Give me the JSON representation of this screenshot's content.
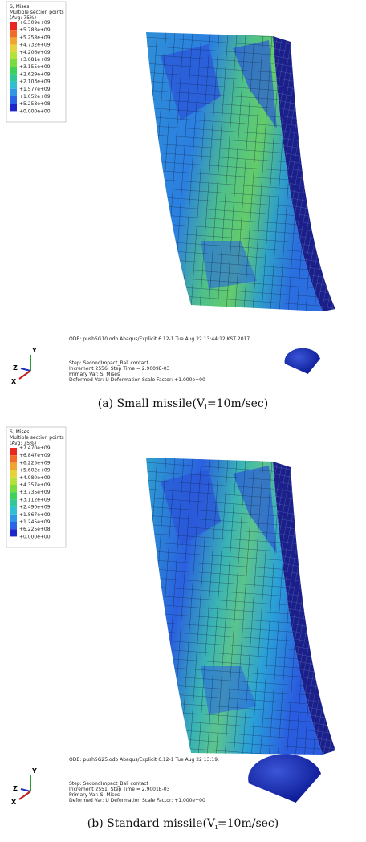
{
  "panels": [
    {
      "legend": {
        "title": "S, Mises",
        "subtitle": "Multiple section points",
        "avg": "(Avg: 75%)",
        "labels": [
          "+6.309e+09",
          "+5.783e+09",
          "+5.258e+09",
          "+4.732e+09",
          "+4.206e+09",
          "+3.681e+09",
          "+3.155e+09",
          "+2.629e+09",
          "+2.103e+09",
          "+1.577e+09",
          "+1.052e+09",
          "+5.258e+08",
          "+0.000e+00"
        ],
        "colors": [
          "#e8281e",
          "#f06a28",
          "#f0a532",
          "#e6d23c",
          "#b4e13c",
          "#78dc3c",
          "#3cd25a",
          "#32c896",
          "#32bed2",
          "#3296e6",
          "#2a64e6",
          "#1e28c8"
        ]
      },
      "info": {
        "odb": "ODB: push5G10.odb    Abaqus/Explicit 6.12-1    Tue Aug 22 13:44:12 KST 2017",
        "step": "Step: SecondImpact_Ball contact",
        "increment": "Increment    2556: Step Time =   2.9009E-03",
        "primary": "Primary Var: S, Mises",
        "deformed": "Deformed Var: U   Deformation Scale Factor: +1.000e+00"
      },
      "triad": {
        "y": "Y",
        "z": "Z",
        "x": "X"
      },
      "caption": {
        "label": "(a) Small missile(V",
        "sub": "i",
        "rest": "=10m/sec)"
      }
    },
    {
      "legend": {
        "title": "S, Mises",
        "subtitle": "Multiple section points",
        "avg": "(Avg: 75%)",
        "labels": [
          "+7.470e+09",
          "+6.847e+09",
          "+6.225e+09",
          "+5.602e+09",
          "+4.980e+09",
          "+4.357e+09",
          "+3.735e+09",
          "+3.112e+09",
          "+2.490e+09",
          "+1.867e+09",
          "+1.245e+09",
          "+6.225e+08",
          "+0.000e+00"
        ],
        "colors": [
          "#e8281e",
          "#f06a28",
          "#f0a532",
          "#e6d23c",
          "#b4e13c",
          "#78dc3c",
          "#3cd25a",
          "#32c896",
          "#32bed2",
          "#3296e6",
          "#2a64e6",
          "#1e28c8"
        ]
      },
      "info": {
        "odb": "ODB: push5G25.odb    Abaqus/Explicit 6.12-1    Tue Aug 22 13:19:",
        "step": "Step: SecondImpact_Ball contact",
        "increment": "Increment    2551: Step Time =   2.9001E-03",
        "primary": "Primary Var: S, Mises",
        "deformed": "Deformed Var: U   Deformation Scale Factor: +1.000e+00"
      },
      "triad": {
        "y": "Y",
        "z": "Z",
        "x": "X"
      },
      "caption": {
        "label": "(b) Standard missile(V",
        "sub": "i",
        "rest": "=10m/sec)"
      }
    }
  ]
}
